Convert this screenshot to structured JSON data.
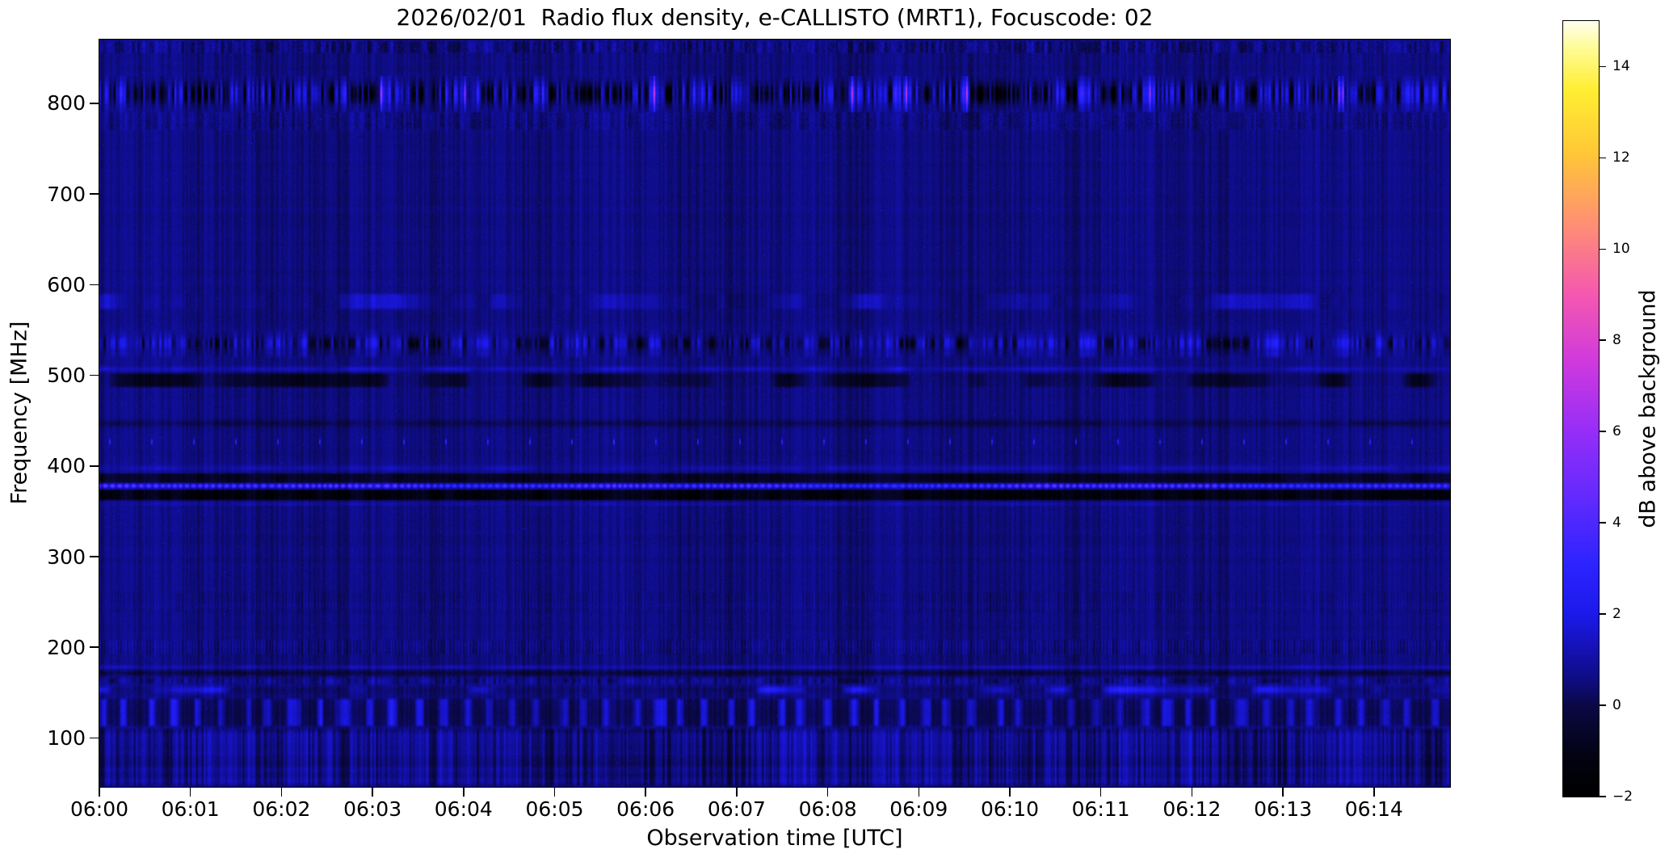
{
  "figure": {
    "title": "2026/02/01  Radio flux density, e-CALLISTO (MRT1), Focuscode: 02",
    "background_color": "#ffffff",
    "text_color": "#000000"
  },
  "axes": {
    "xlabel": "Observation time [UTC]",
    "ylabel": "Frequency [MHz]",
    "x_tick_labels": [
      "06:00",
      "06:01",
      "06:02",
      "06:03",
      "06:04",
      "06:05",
      "06:06",
      "06:07",
      "06:08",
      "06:09",
      "06:10",
      "06:11",
      "06:12",
      "06:13",
      "06:14"
    ],
    "y_tick_labels": [
      "800",
      "700",
      "600",
      "500",
      "400",
      "300",
      "200",
      "100"
    ],
    "y_tick_values": [
      800,
      700,
      600,
      500,
      400,
      300,
      200,
      100
    ]
  },
  "colorbar": {
    "label": "dB above background",
    "tick_labels": [
      "14",
      "12",
      "10",
      "8",
      "6",
      "4",
      "2",
      "0",
      "−2"
    ],
    "tick_values": [
      14,
      12,
      10,
      8,
      6,
      4,
      2,
      0,
      -2
    ],
    "vmin": -2,
    "vmax": 15,
    "colormap": "gnuplot2"
  },
  "chart_data": {
    "type": "heatmap",
    "title": "2026/02/01  Radio flux density, e-CALLISTO (MRT1), Focuscode: 02",
    "date": "2026/02/01",
    "instrument": "e-CALLISTO (MRT1)",
    "focuscode": "02",
    "xlabel": "Observation time [UTC]",
    "ylabel": "Frequency [MHz]",
    "x_range_utc": [
      "06:00",
      "06:14:50"
    ],
    "x_tick_interval_min": 1,
    "y_range_mhz": [
      46,
      870
    ],
    "value_range_db": [
      -2,
      15
    ],
    "background_level_db": 0.55,
    "colorbar_label": "dB above background",
    "bands": [
      {
        "f_lo": 855,
        "f_hi": 870,
        "type": "speckle",
        "amp": 0.5,
        "desc": "faint speckles near top edge"
      },
      {
        "f_lo": 793,
        "f_hi": 828,
        "type": "rfi_heavy",
        "amp": 1.0,
        "desc": "strong speckled RFI band 795-825 MHz"
      },
      {
        "f_lo": 770,
        "f_hi": 792,
        "type": "speckle",
        "amp": 0.3,
        "desc": "weak shoulder below 800 MHz band"
      },
      {
        "f_lo": 572,
        "f_hi": 592,
        "type": "smooth_bright",
        "amp": 0.6,
        "desc": "diffuse enhancement near 580 MHz"
      },
      {
        "f_lo": 522,
        "f_hi": 548,
        "type": "rfi_mixed",
        "amp": 1.0,
        "desc": "speckled dark/bright RFI band near 535 MHz"
      },
      {
        "f_lo": 504,
        "f_hi": 511,
        "type": "faint_line",
        "amp": 0.7,
        "desc": "thin enhancement near 507 MHz"
      },
      {
        "f_lo": 486,
        "f_hi": 504,
        "type": "dark_wavy",
        "amp": 0.8,
        "desc": "dark wavy band near 495 MHz"
      },
      {
        "f_lo": 443,
        "f_hi": 452,
        "type": "dark_line",
        "amp": 0.45,
        "desc": "faint dark dashed line near 447 MHz"
      },
      {
        "f_lo": 424,
        "f_hi": 430,
        "type": "pips",
        "amp": 1.0,
        "desc": "periodic bright pips (~28 s) near 427 MHz"
      },
      {
        "f_lo": 394,
        "f_hi": 402,
        "type": "faint_line",
        "amp": 0.5,
        "desc": "diffuse line near 398 MHz"
      },
      {
        "f_lo": 381,
        "f_hi": 393,
        "type": "dark_band",
        "amp": 0.7,
        "desc": "dark band 382-392 MHz"
      },
      {
        "f_lo": 376,
        "f_hi": 381,
        "type": "bright_beaded",
        "amp": 1.0,
        "desc": "bright beaded carrier near 379 MHz"
      },
      {
        "f_lo": 362,
        "f_hi": 375,
        "type": "dark_band",
        "amp": 1.0,
        "desc": "black absorption band near 370 MHz"
      },
      {
        "f_lo": 356,
        "f_hi": 361,
        "type": "faint_line",
        "amp": 0.45,
        "desc": "faint line near 358 MHz"
      },
      {
        "f_lo": 238,
        "f_hi": 262,
        "type": "comb_faint",
        "amp": 0.25,
        "desc": "very faint vertical striping near 250 MHz"
      },
      {
        "f_lo": 192,
        "f_hi": 210,
        "type": "comb_faint",
        "amp": 0.5,
        "desc": "faint vertical striping near 200 MHz"
      },
      {
        "f_lo": 176,
        "f_hi": 181,
        "type": "faint_line",
        "amp": 0.5,
        "desc": "thin enhancement near 178 MHz"
      },
      {
        "f_lo": 168,
        "f_hi": 176,
        "type": "dark_line",
        "amp": 0.7,
        "desc": "dark line near 172 MHz"
      },
      {
        "f_lo": 159,
        "f_hi": 168,
        "type": "rfi_mixed",
        "amp": 0.5,
        "desc": "dark/bright dashes 160-168 MHz"
      },
      {
        "f_lo": 148,
        "f_hi": 159,
        "type": "dashed_bright",
        "amp": 0.85,
        "desc": "bright dashed segments near 153 MHz"
      },
      {
        "f_lo": 112,
        "f_hi": 145,
        "type": "blob_comb",
        "amp": 1.0,
        "desc": "periodic bright blobs (~16 s) 112-145 MHz"
      },
      {
        "f_lo": 46,
        "f_hi": 112,
        "type": "stripes",
        "amp": 0.9,
        "desc": "striped noisy region below 112 MHz"
      }
    ]
  }
}
